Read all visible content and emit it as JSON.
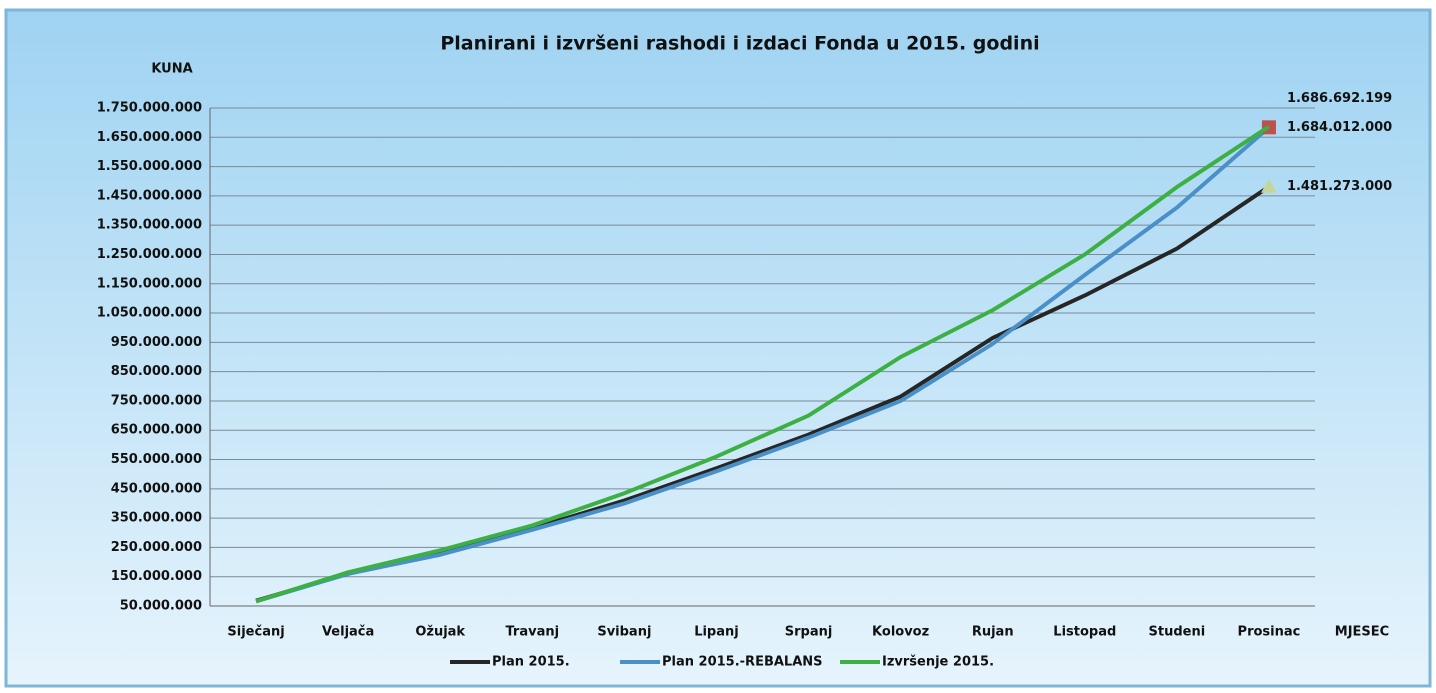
{
  "chart_data": {
    "type": "line",
    "title": "Planirani i izvršeni rashodi i izdaci Fonda u 2015. godini",
    "y_label": "KUNA",
    "x_label": "MJESEC",
    "categories": [
      "Siječanj",
      "Veljača",
      "Ožujak",
      "Travanj",
      "Svibanj",
      "Lipanj",
      "Srpanj",
      "Kolovoz",
      "Rujan",
      "Listopad",
      "Studeni",
      "Prosinac"
    ],
    "series": [
      {
        "name": "Plan 2015.",
        "color": "#262626",
        "marker": "triangle",
        "marker_color": "#c3d69b",
        "values": [
          68000000,
          160000000,
          235000000,
          315000000,
          410000000,
          520000000,
          635000000,
          765000000,
          965000000,
          1110000000,
          1270000000,
          1481273000
        ],
        "value_labels": [
          null,
          null,
          null,
          null,
          null,
          null,
          null,
          null,
          null,
          null,
          null,
          "1.481.273.000"
        ]
      },
      {
        "name": "Plan 2015.-REBALANS",
        "color": "#4a90c8",
        "marker": "square",
        "marker_color": "#c0504d",
        "values": [
          66000000,
          160000000,
          225000000,
          310000000,
          400000000,
          510000000,
          625000000,
          750000000,
          945000000,
          1180000000,
          1410000000,
          1684012000
        ],
        "value_labels": [
          null,
          null,
          null,
          null,
          null,
          null,
          null,
          null,
          null,
          null,
          null,
          "1.684.012.000"
        ]
      },
      {
        "name": "Izvršenje 2015.",
        "color": "#3cb043",
        "values": [
          66000000,
          165000000,
          240000000,
          325000000,
          435000000,
          560000000,
          700000000,
          900000000,
          1060000000,
          1250000000,
          1480000000,
          1686692199
        ],
        "value_labels": [
          null,
          null,
          null,
          null,
          null,
          null,
          null,
          null,
          null,
          null,
          null,
          "1.686.692.199"
        ]
      }
    ],
    "ylim": [
      50000000,
      1750000000
    ],
    "yticks": [
      {
        "value": 50000000,
        "label": "50.000.000"
      },
      {
        "value": 150000000,
        "label": "150.000.000"
      },
      {
        "value": 250000000,
        "label": "250.000.000"
      },
      {
        "value": 350000000,
        "label": "350.000.000"
      },
      {
        "value": 450000000,
        "label": "450.000.000"
      },
      {
        "value": 550000000,
        "label": "550.000.000"
      },
      {
        "value": 650000000,
        "label": "650.000.000"
      },
      {
        "value": 750000000,
        "label": "750.000.000"
      },
      {
        "value": 850000000,
        "label": "850.000.000"
      },
      {
        "value": 950000000,
        "label": "950.000.000"
      },
      {
        "value": 1050000000,
        "label": "1.050.000.000"
      },
      {
        "value": 1150000000,
        "label": "1.150.000.000"
      },
      {
        "value": 1250000000,
        "label": "1.250.000.000"
      },
      {
        "value": 1350000000,
        "label": "1.350.000.000"
      },
      {
        "value": 1450000000,
        "label": "1.450.000.000"
      },
      {
        "value": 1550000000,
        "label": "1.550.000.000"
      },
      {
        "value": 1650000000,
        "label": "1.650.000.000"
      },
      {
        "value": 1750000000,
        "label": "1.750.000.000"
      }
    ],
    "grid": true,
    "legend": "bottom"
  }
}
